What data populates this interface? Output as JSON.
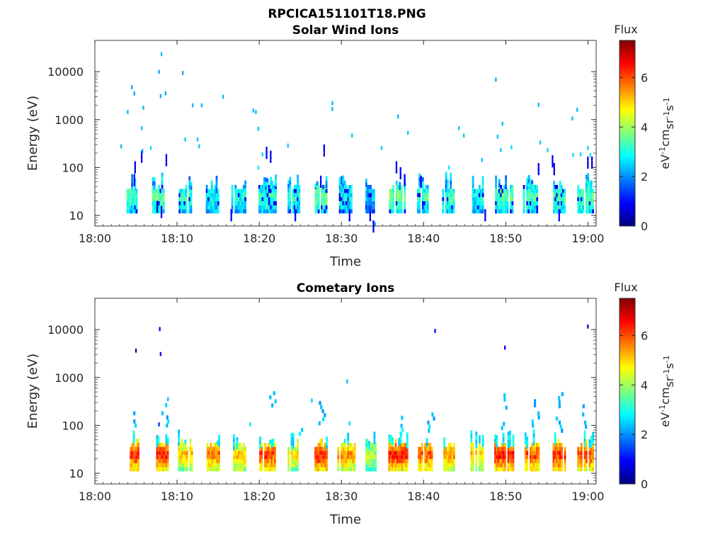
{
  "figure": {
    "title": "RPCICA151101T18.PNG"
  },
  "colorbar": {
    "stops": [
      "#00007f",
      "#0000ff",
      "#007fff",
      "#00ffff",
      "#7fff7f",
      "#ffff00",
      "#ff7f00",
      "#ff0000",
      "#7f0000"
    ],
    "max": 7.5
  },
  "chart_data": [
    {
      "type": "heatmap",
      "title": "Solar Wind Ions",
      "xlabel": "Time",
      "ylabel": "Energy (eV)",
      "x_ticks": [
        "18:00",
        "18:10",
        "18:20",
        "18:30",
        "18:40",
        "18:50",
        "19:00"
      ],
      "x_range_min": [
        0,
        61
      ],
      "y_scale": "log",
      "y_ticks": [
        10,
        100,
        1000,
        10000
      ],
      "y_tick_labels": [
        "10",
        "100",
        "1000",
        "10000"
      ],
      "ylim": [
        6,
        45000
      ],
      "colorbar_label": "Flux",
      "colorbar_ticks": [
        0,
        2,
        4,
        6
      ],
      "colorbar_unit": "eV-1cm-2sr-1s-1",
      "grid": false,
      "bursts": [
        {
          "t": 4.5,
          "w": 1.3,
          "flux": 3.4
        },
        {
          "t": 7.7,
          "w": 1.5,
          "flux": 3.6
        },
        {
          "t": 11.0,
          "w": 1.6,
          "flux": 3.2
        },
        {
          "t": 14.3,
          "w": 1.6,
          "flux": 3.0
        },
        {
          "t": 17.5,
          "w": 1.8,
          "flux": 3.0
        },
        {
          "t": 21.0,
          "w": 2.2,
          "flux": 3.3
        },
        {
          "t": 24.2,
          "w": 1.5,
          "flux": 3.1
        },
        {
          "t": 27.5,
          "w": 1.5,
          "flux": 3.8
        },
        {
          "t": 30.5,
          "w": 1.6,
          "flux": 3.0
        },
        {
          "t": 33.5,
          "w": 1.2,
          "flux": 2.2
        },
        {
          "t": 36.8,
          "w": 2.0,
          "flux": 3.8
        },
        {
          "t": 40.0,
          "w": 1.6,
          "flux": 3.4
        },
        {
          "t": 43.0,
          "w": 1.5,
          "flux": 3.4
        },
        {
          "t": 46.5,
          "w": 1.6,
          "flux": 3.0
        },
        {
          "t": 49.8,
          "w": 2.2,
          "flux": 3.6
        },
        {
          "t": 53.0,
          "w": 1.8,
          "flux": 3.5
        },
        {
          "t": 56.5,
          "w": 1.5,
          "flux": 3.5
        },
        {
          "t": 59.7,
          "w": 2.0,
          "flux": 3.5
        }
      ],
      "points": [
        [
          3.1,
          250,
          2.3
        ],
        [
          3.9,
          1300,
          2.3
        ],
        [
          4.4,
          4300,
          2.2
        ],
        [
          4.7,
          3200,
          2.2
        ],
        [
          5.8,
          1600,
          2.3
        ],
        [
          5.6,
          600,
          2.4
        ],
        [
          5.7,
          200,
          2.2
        ],
        [
          6.7,
          230,
          2.6
        ],
        [
          7.7,
          9000,
          2.2
        ],
        [
          8.0,
          21000,
          2.3
        ],
        [
          7.9,
          2800,
          2.2
        ],
        [
          8.5,
          3200,
          2.2
        ],
        [
          10.6,
          8500,
          2.2
        ],
        [
          11.8,
          1800,
          2.3
        ],
        [
          12.9,
          1800,
          2.3
        ],
        [
          10.9,
          350,
          2.4
        ],
        [
          12.4,
          350,
          2.4
        ],
        [
          12.6,
          250,
          2.4
        ],
        [
          15.5,
          2700,
          2.3
        ],
        [
          19.2,
          1400,
          2.3
        ],
        [
          19.5,
          1300,
          2.3
        ],
        [
          19.8,
          580,
          2.4
        ],
        [
          20.3,
          170,
          2.6
        ],
        [
          23.4,
          260,
          2.4
        ],
        [
          28.8,
          2000,
          2.3
        ],
        [
          28.8,
          1500,
          2.3
        ],
        [
          31.2,
          420,
          2.4
        ],
        [
          34.8,
          230,
          2.5
        ],
        [
          36.8,
          1050,
          2.3
        ],
        [
          38.0,
          480,
          2.4
        ],
        [
          44.2,
          600,
          2.4
        ],
        [
          44.8,
          420,
          2.4
        ],
        [
          47.0,
          130,
          2.4
        ],
        [
          48.7,
          6200,
          2.2
        ],
        [
          48.9,
          400,
          2.4
        ],
        [
          49.5,
          740,
          2.3
        ],
        [
          49.3,
          210,
          2.4
        ],
        [
          50.6,
          240,
          2.5
        ],
        [
          53.9,
          1850,
          2.2
        ],
        [
          54.1,
          300,
          2.4
        ],
        [
          55.0,
          210,
          2.5
        ],
        [
          58.0,
          950,
          2.3
        ],
        [
          58.6,
          1450,
          2.3
        ],
        [
          58.1,
          165,
          2.6
        ],
        [
          59.0,
          170,
          2.5
        ],
        [
          60.2,
          165,
          2.6
        ],
        [
          59.9,
          230,
          2.5
        ],
        [
          43.0,
          90,
          2.6
        ],
        [
          19.8,
          90,
          2.7
        ],
        [
          34.0,
          6,
          2.3
        ]
      ],
      "blue_columns": [
        [
          4.8,
          120,
          0.8
        ],
        [
          4.7,
          65,
          0.9
        ],
        [
          5.6,
          200,
          0.8
        ],
        [
          8.6,
          170,
          0.8
        ],
        [
          7.5,
          18,
          0.8
        ],
        [
          8.0,
          14,
          0.8
        ],
        [
          20.8,
          240,
          0.8
        ],
        [
          21.3,
          200,
          0.8
        ],
        [
          27.8,
          270,
          0.8
        ],
        [
          27.4,
          60,
          1.0
        ],
        [
          33.8,
          7,
          0.8
        ],
        [
          33.4,
          12,
          0.8
        ],
        [
          36.6,
          120,
          0.9
        ],
        [
          37.1,
          90,
          0.9
        ],
        [
          37.6,
          65,
          0.9
        ],
        [
          39.6,
          60,
          0.9
        ],
        [
          47.4,
          12,
          0.9
        ],
        [
          53.9,
          110,
          0.8
        ],
        [
          55.6,
          160,
          0.8
        ],
        [
          55.8,
          110,
          0.8
        ],
        [
          59.9,
          150,
          0.8
        ],
        [
          60.4,
          150,
          0.8
        ],
        [
          56.4,
          12,
          0.9
        ],
        [
          16.5,
          12,
          0.9
        ],
        [
          24.3,
          12,
          0.9
        ],
        [
          30.9,
          12,
          0.9
        ]
      ]
    },
    {
      "type": "heatmap",
      "title": "Cometary Ions",
      "xlabel": "Time",
      "ylabel": "Energy (eV)",
      "x_ticks": [
        "18:00",
        "18:10",
        "18:20",
        "18:30",
        "18:40",
        "18:50",
        "19:00"
      ],
      "x_range_min": [
        0,
        61
      ],
      "y_scale": "log",
      "y_ticks": [
        10,
        100,
        1000,
        10000
      ],
      "y_tick_labels": [
        "10",
        "100",
        "1000",
        "10000"
      ],
      "ylim": [
        6,
        45000
      ],
      "colorbar_label": "Flux",
      "colorbar_ticks": [
        0,
        2,
        4,
        6
      ],
      "colorbar_unit": "eV-1cm-2sr-1s-1",
      "grid": false,
      "bursts": [
        {
          "t": 4.9,
          "w": 1.3,
          "flux": 6.3
        },
        {
          "t": 8.2,
          "w": 1.5,
          "flux": 6.4
        },
        {
          "t": 11.0,
          "w": 1.8,
          "flux": 5.2
        },
        {
          "t": 14.5,
          "w": 1.8,
          "flux": 5.8
        },
        {
          "t": 17.5,
          "w": 1.8,
          "flux": 5.2
        },
        {
          "t": 21.0,
          "w": 2.4,
          "flux": 6.2
        },
        {
          "t": 24.2,
          "w": 1.5,
          "flux": 5.0
        },
        {
          "t": 27.5,
          "w": 1.6,
          "flux": 6.5
        },
        {
          "t": 30.5,
          "w": 2.4,
          "flux": 5.6
        },
        {
          "t": 33.5,
          "w": 1.2,
          "flux": 4.3
        },
        {
          "t": 37.0,
          "w": 2.6,
          "flux": 6.5
        },
        {
          "t": 40.2,
          "w": 1.8,
          "flux": 6.0
        },
        {
          "t": 43.2,
          "w": 1.6,
          "flux": 5.6
        },
        {
          "t": 46.5,
          "w": 1.6,
          "flux": 5.2
        },
        {
          "t": 49.8,
          "w": 2.4,
          "flux": 6.6
        },
        {
          "t": 53.2,
          "w": 1.8,
          "flux": 6.2
        },
        {
          "t": 56.5,
          "w": 1.6,
          "flux": 6.4
        },
        {
          "t": 59.7,
          "w": 2.0,
          "flux": 6.2
        }
      ],
      "plumes": [
        [
          4.9,
          90,
          230,
          2.4
        ],
        [
          8.4,
          90,
          330,
          2.3
        ],
        [
          21.5,
          160,
          520,
          2.3
        ],
        [
          27.5,
          100,
          300,
          2.3
        ],
        [
          37.0,
          60,
          150,
          2.6
        ],
        [
          40.8,
          70,
          160,
          2.4
        ],
        [
          49.8,
          80,
          520,
          2.3
        ],
        [
          53.5,
          90,
          330,
          2.3
        ],
        [
          56.4,
          70,
          420,
          2.3
        ],
        [
          59.5,
          70,
          250,
          2.4
        ],
        [
          24.8,
          60,
          75,
          2.6
        ],
        [
          14.6,
          60,
          60,
          2.8
        ],
        [
          43.2,
          60,
          60,
          2.8
        ]
      ],
      "points": [
        [
          4.9,
          3300,
          0.3
        ],
        [
          7.8,
          9300,
          0.8
        ],
        [
          7.9,
          2800,
          0.9
        ],
        [
          30.6,
          750,
          2.3
        ],
        [
          41.3,
          8500,
          1.0
        ],
        [
          49.8,
          3800,
          0.9
        ],
        [
          59.9,
          10500,
          0.5
        ],
        [
          18.8,
          95,
          2.6
        ],
        [
          26.3,
          300,
          2.4
        ],
        [
          30.9,
          100,
          2.5
        ],
        [
          7.7,
          95,
          1.3
        ],
        [
          8.8,
          320,
          2.3
        ]
      ]
    }
  ]
}
